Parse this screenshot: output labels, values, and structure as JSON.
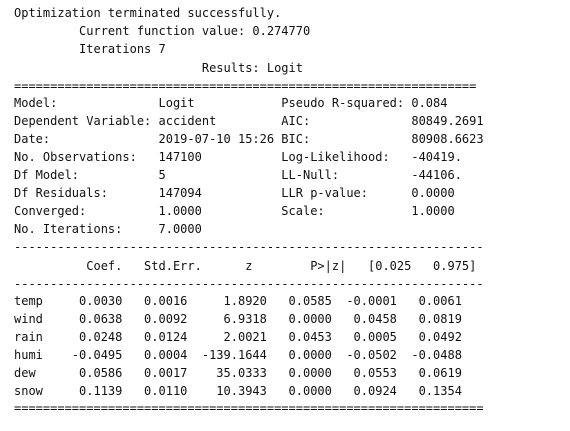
{
  "output": {
    "lines": [
      "Optimization terminated successfully.",
      "         Current function value: 0.274770",
      "         Iterations 7",
      "                          Results: Logit",
      "================================================================",
      "Model:              Logit            Pseudo R-squared: 0.084",
      "Dependent Variable: accident         AIC:              80849.2691",
      "Date:               2019-07-10 15:26 BIC:              80908.6623",
      "No. Observations:   147100           Log-Likelihood:   -40419.",
      "Df Model:           5                LL-Null:          -44106.",
      "Df Residuals:       147094           LLR p-value:      0.0000",
      "Converged:          1.0000           Scale:            1.0000",
      "No. Iterations:     7.0000",
      "-----------------------------------------------------------------",
      "          Coef.   Std.Err.      z        P>|z|   [0.025   0.975]",
      "-----------------------------------------------------------------",
      "temp     0.0030   0.0016     1.8920   0.0585  -0.0001   0.0061",
      "wind     0.0638   0.0092     6.9318   0.0000   0.0458   0.0819",
      "rain     0.0248   0.0124     2.0021   0.0453   0.0005   0.0492",
      "humi    -0.0495   0.0004  -139.1644   0.0000  -0.0502  -0.0488",
      "dew      0.0586   0.0017    35.0333   0.0000   0.0553   0.0619",
      "snow     0.1139   0.0110    10.3943   0.0000   0.0924   0.1354",
      "================================================================="
    ]
  }
}
